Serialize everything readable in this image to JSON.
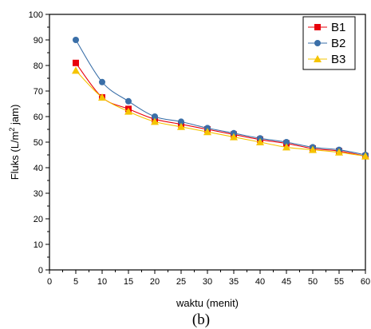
{
  "chart_data": {
    "type": "line",
    "caption": "(b)",
    "xlabel": "waktu (menit)",
    "ylabel": {
      "prefix": "Fluks (L/m",
      "superscript": "2",
      "suffix": " jam)"
    },
    "xlim": [
      0,
      60
    ],
    "ylim": [
      0,
      100
    ],
    "xticks": [
      0,
      5,
      10,
      15,
      20,
      25,
      30,
      35,
      40,
      45,
      50,
      55,
      60
    ],
    "yticks": [
      0,
      10,
      20,
      30,
      40,
      50,
      60,
      70,
      80,
      90,
      100
    ],
    "grid": false,
    "legend_position": "top-right",
    "x": [
      5,
      10,
      15,
      20,
      25,
      30,
      35,
      40,
      45,
      50,
      55,
      60
    ],
    "series": [
      {
        "name": "B1",
        "color": "#e8000b",
        "marker": "square",
        "values": [
          81,
          67.5,
          63,
          59,
          57,
          55,
          53,
          51,
          49.5,
          47.5,
          46.5,
          44.5
        ]
      },
      {
        "name": "B2",
        "color": "#3a6fa8",
        "marker": "circle",
        "values": [
          90,
          73.5,
          66,
          60,
          58,
          55.5,
          53.5,
          51.5,
          50,
          48,
          47,
          45
        ]
      },
      {
        "name": "B3",
        "color": "#f5c400",
        "marker": "triangle",
        "values": [
          78,
          67.5,
          62,
          58,
          56,
          54,
          52,
          50,
          48,
          47,
          46,
          44.5
        ]
      }
    ]
  }
}
